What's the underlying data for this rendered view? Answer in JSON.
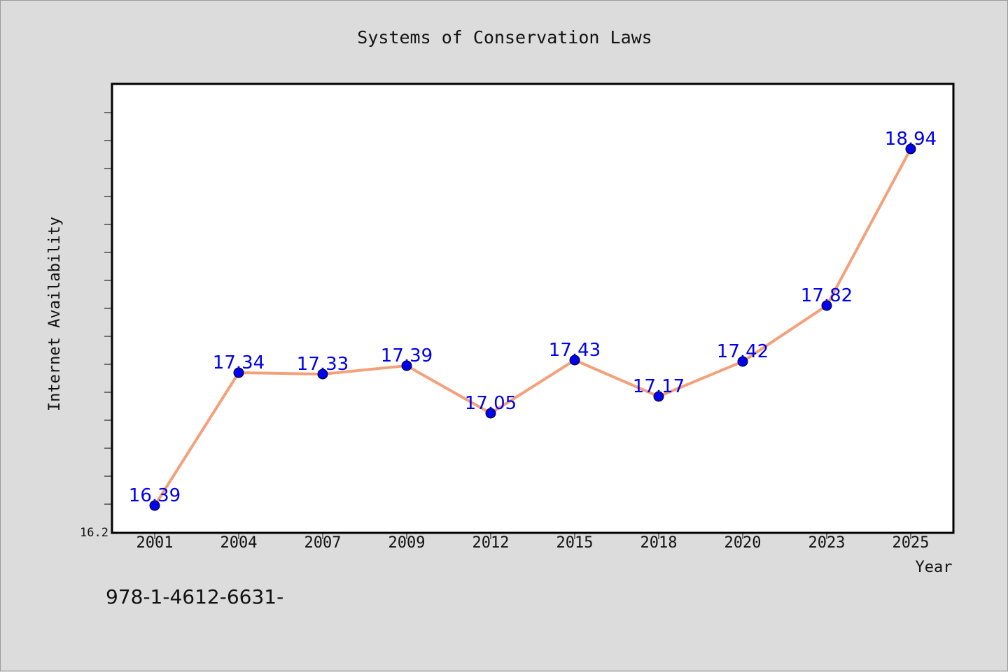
{
  "chart_data": {
    "type": "line",
    "title": "Systems of Conservation Laws",
    "xlabel": "Year",
    "ylabel": "Internet Availability",
    "categories": [
      "2001",
      "2004",
      "2007",
      "2009",
      "2012",
      "2015",
      "2018",
      "2020",
      "2023",
      "2025"
    ],
    "series": [
      {
        "values": [
          16.39,
          17.34,
          17.33,
          17.39,
          17.05,
          17.43,
          17.17,
          17.42,
          17.82,
          18.94
        ]
      }
    ],
    "ylim": [
      16.2,
      19.4
    ],
    "yticks_labeled": [
      "16.2"
    ],
    "grid": false,
    "legend": "none",
    "colors": {
      "line": "#f4a07a",
      "marker": "#0000ee",
      "data_label": "#0000ee",
      "plot_background": "#ffffff",
      "figure_background": "#dcdcdc"
    }
  },
  "footer_text": "978-1-4612-6631-"
}
